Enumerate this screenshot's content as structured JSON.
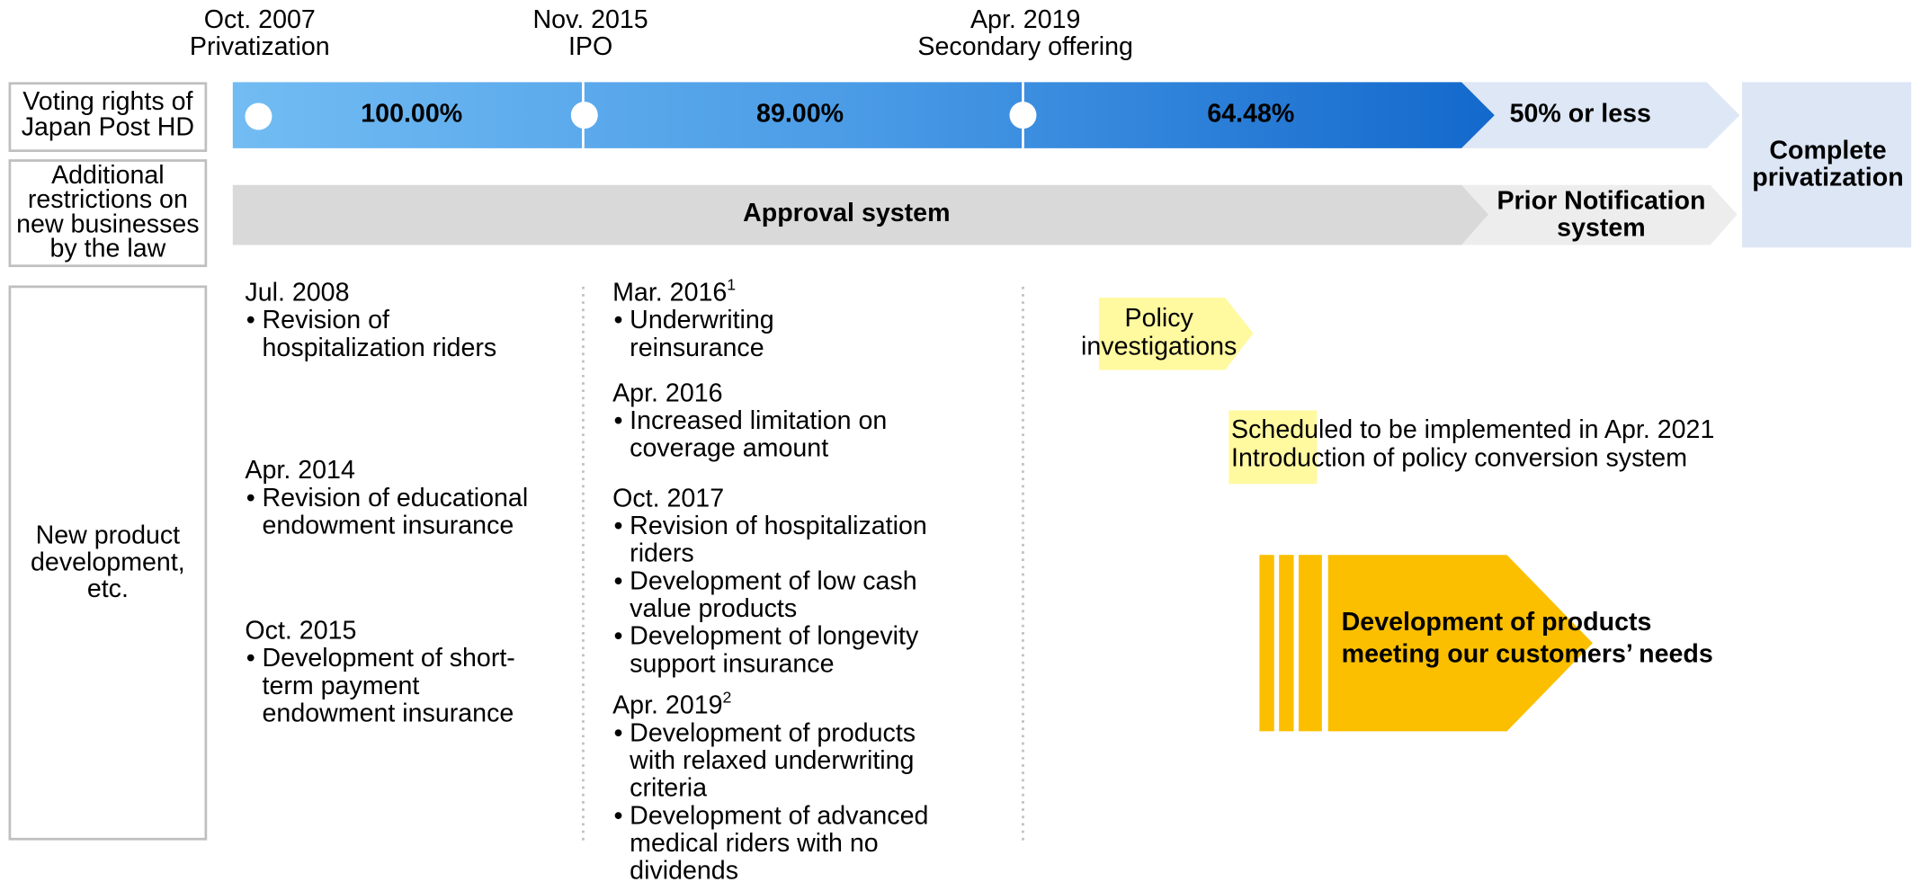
{
  "milestones": [
    {
      "date": "Oct. 2007",
      "event": "Privatization"
    },
    {
      "date": "Nov. 2015",
      "event": "IPO"
    },
    {
      "date": "Apr. 2019",
      "event": "Secondary offering"
    }
  ],
  "voting_rights": {
    "label": [
      "Voting rights of",
      "Japan Post HD"
    ],
    "stages": [
      "100.00%",
      "89.00%",
      "64.48%",
      "50% or less"
    ]
  },
  "restrictions": {
    "label": [
      "Additional",
      "restrictions on",
      "new businesses",
      "by the law"
    ],
    "stages": [
      [
        "Approval system"
      ],
      [
        "Prior Notification",
        "system"
      ]
    ]
  },
  "final": [
    "Complete",
    "privatization"
  ],
  "products": {
    "label": [
      "New product",
      "development,",
      "etc."
    ],
    "columns": [
      [
        {
          "date": "Jul. 2008",
          "items": [
            [
              "Revision of",
              "hospitalization riders"
            ]
          ]
        },
        {
          "date": "Apr. 2014",
          "items": [
            [
              "Revision of educational",
              "endowment insurance"
            ]
          ]
        },
        {
          "date": "Oct. 2015",
          "items": [
            [
              "Development of short-",
              "term payment",
              "endowment insurance"
            ]
          ]
        }
      ],
      [
        {
          "date": "Mar. 2016",
          "note": "1",
          "items": [
            [
              "Underwriting",
              "reinsurance"
            ]
          ]
        },
        {
          "date": "Apr. 2016",
          "items": [
            [
              "Increased limitation on",
              "coverage amount"
            ]
          ]
        },
        {
          "date": "Oct. 2017",
          "items": [
            [
              "Revision of hospitalization",
              "riders"
            ],
            [
              "Development of low cash",
              "value  products"
            ],
            [
              "Development of longevity",
              "support insurance"
            ]
          ]
        },
        {
          "date": "Apr. 2019",
          "note": "2",
          "items": [
            [
              "Development of products",
              "with relaxed underwriting",
              "criteria"
            ],
            [
              "Development of advanced",
              "medical riders with no",
              "dividends"
            ]
          ]
        }
      ]
    ]
  },
  "policy": [
    "Policy",
    "investigations"
  ],
  "scheduled": [
    "Scheduled to be implemented in Apr. 2021",
    "Introduction of policy conversion system"
  ],
  "goal": [
    "Development of products",
    "meeting our customers’ needs"
  ]
}
